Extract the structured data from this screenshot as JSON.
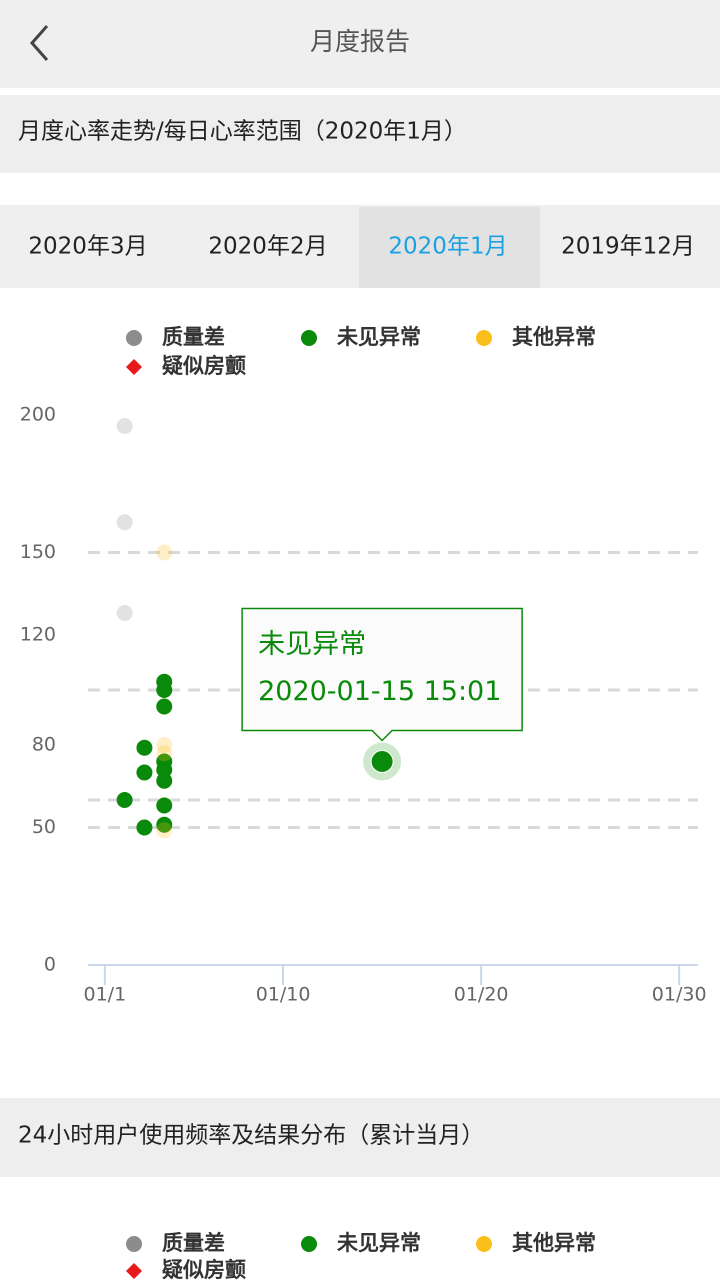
{
  "header": {
    "title": "月度报告"
  },
  "section1": {
    "title": "月度心率走势/每日心率范围（2020年1月）"
  },
  "tabs": [
    {
      "label": "2020年3月",
      "selected": false
    },
    {
      "label": "2020年2月",
      "selected": false
    },
    {
      "label": "2020年1月",
      "selected": true
    },
    {
      "label": "2019年12月",
      "selected": false
    }
  ],
  "chart_data": {
    "type": "scatter",
    "series": [
      {
        "name": "质量差",
        "color": "#8c8c8c",
        "marker": "circle",
        "faded": true,
        "x": [
          2,
          2,
          2
        ],
        "values": [
          196,
          161,
          128
        ]
      },
      {
        "name": "未见异常",
        "color": "#0a8a0a",
        "marker": "circle",
        "faded": false,
        "x": [
          2,
          3,
          3,
          3,
          4,
          4,
          4,
          4,
          4,
          4,
          4,
          4,
          15
        ],
        "values": [
          60,
          79,
          70,
          50,
          103,
          100,
          94,
          74,
          71,
          67,
          58,
          51,
          74
        ]
      },
      {
        "name": "其他异常",
        "color": "#fbbf1c",
        "marker": "circle",
        "faded": true,
        "x": [
          4,
          4,
          4,
          4
        ],
        "values": [
          150,
          80,
          77,
          49
        ]
      },
      {
        "name": "疑似房颤",
        "color": "#e8191b",
        "marker": "diamond",
        "faded": false,
        "x": [],
        "values": []
      }
    ],
    "xlim": [
      0.15,
      30.95
    ],
    "xticks": [
      {
        "value": 1,
        "label": "01/1"
      },
      {
        "value": 10,
        "label": "01/10"
      },
      {
        "value": 20,
        "label": "01/20"
      },
      {
        "value": 30,
        "label": "01/30"
      }
    ],
    "ylim": [
      0,
      200
    ],
    "yticks": [
      0,
      50,
      80,
      120,
      150,
      200
    ],
    "ref_lines": [
      150,
      100,
      60,
      50
    ],
    "tooltip": {
      "title": "未见异常",
      "text": "2020-01-15 15:01"
    }
  },
  "section2": {
    "title": "24小时用户使用频率及结果分布（累计当月）",
    "legend": [
      "质量差",
      "未见异常",
      "其他异常",
      "疑似房颤"
    ]
  }
}
